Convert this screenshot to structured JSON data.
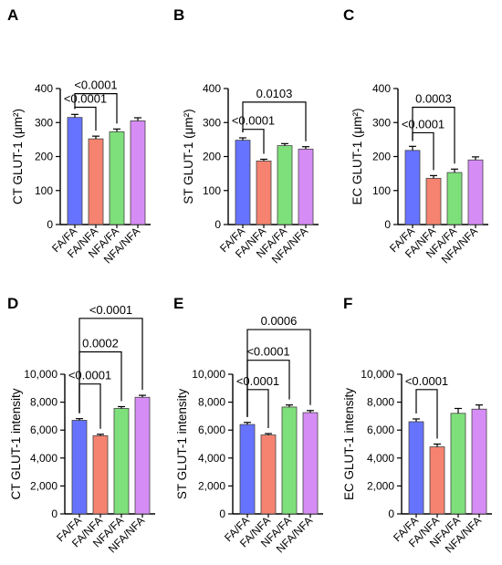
{
  "panels_meta": {
    "colors": [
      "#6673ff",
      "#f5836f",
      "#7ee07a",
      "#d68cf5"
    ],
    "error_color": "#000000"
  },
  "chart_data": [
    {
      "type": "bar",
      "panel_label": "A",
      "title": "",
      "ylabel": "CT GLUT-1 (μm²)",
      "ylim": [
        0,
        400
      ],
      "yticks": [
        "0",
        "100",
        "200",
        "300",
        "400"
      ],
      "yticks_values": [
        0,
        100,
        200,
        300,
        400
      ],
      "categories": [
        "FA/FA",
        "FA/NFA",
        "NFA/FA",
        "NFA/NFA"
      ],
      "values": [
        315,
        252,
        273,
        305
      ],
      "errors": [
        9,
        8,
        8,
        9
      ],
      "grid": false,
      "comparisons": [
        {
          "from": 0,
          "to": 1,
          "label": "<0.0001",
          "y": 345
        },
        {
          "from": 0,
          "to": 2,
          "label": "<0.0001",
          "y": 385
        }
      ]
    },
    {
      "type": "bar",
      "panel_label": "B",
      "title": "",
      "ylabel": "ST GLUT-1 (μm²)",
      "ylim": [
        0,
        400
      ],
      "yticks": [
        "0",
        "100",
        "200",
        "300",
        "400"
      ],
      "yticks_values": [
        0,
        100,
        200,
        300,
        400
      ],
      "categories": [
        "FA/FA",
        "FA/NFA",
        "NFA/FA",
        "NFA/NFA"
      ],
      "values": [
        248,
        187,
        232,
        222
      ],
      "errors": [
        7,
        5,
        6,
        7
      ],
      "grid": false,
      "comparisons": [
        {
          "from": 0,
          "to": 1,
          "label": "<0.0001",
          "y": 280
        },
        {
          "from": 0,
          "to": 3,
          "label": "0.0103",
          "y": 360
        }
      ]
    },
    {
      "type": "bar",
      "panel_label": "C",
      "title": "",
      "ylabel": "EC GLUT-1 (μm²)",
      "ylim": [
        0,
        400
      ],
      "yticks": [
        "0",
        "100",
        "200",
        "300",
        "400"
      ],
      "yticks_values": [
        0,
        100,
        200,
        300,
        400
      ],
      "categories": [
        "FA/FA",
        "FA/NFA",
        "NFA/FA",
        "NFA/NFA"
      ],
      "values": [
        218,
        136,
        153,
        190
      ],
      "errors": [
        12,
        8,
        10,
        9
      ],
      "grid": false,
      "comparisons": [
        {
          "from": 0,
          "to": 1,
          "label": "<0.0001",
          "y": 270
        },
        {
          "from": 0,
          "to": 2,
          "label": "0.0003",
          "y": 345
        }
      ]
    },
    {
      "type": "bar",
      "panel_label": "D",
      "title": "",
      "ylabel": "CT GLUT-1 intensity",
      "ylim": [
        0,
        10000
      ],
      "yticks": [
        "0",
        "2,000",
        "4,000",
        "6,000",
        "8,000",
        "10,000"
      ],
      "yticks_values": [
        0,
        2000,
        4000,
        6000,
        8000,
        10000
      ],
      "categories": [
        "FA/FA",
        "FA/NFA",
        "NFA/FA",
        "NFA/NFA"
      ],
      "values": [
        6700,
        5600,
        7550,
        8350
      ],
      "errors": [
        120,
        100,
        130,
        140
      ],
      "grid": false,
      "comparisons": [
        {
          "from": 0,
          "to": 1,
          "label": "<0.0001",
          "y": 9300
        },
        {
          "from": 0,
          "to": 2,
          "label": "0.0002",
          "y": 11600
        },
        {
          "from": 0,
          "to": 3,
          "label": "<0.0001",
          "y": 14000
        }
      ]
    },
    {
      "type": "bar",
      "panel_label": "E",
      "title": "",
      "ylabel": "ST GLUT-1 intensity",
      "ylim": [
        0,
        10000
      ],
      "yticks": [
        "0",
        "2,000",
        "4,000",
        "6,000",
        "8,000",
        "10,000"
      ],
      "yticks_values": [
        0,
        2000,
        4000,
        6000,
        8000,
        10000
      ],
      "categories": [
        "FA/FA",
        "FA/NFA",
        "NFA/FA",
        "NFA/NFA"
      ],
      "values": [
        6400,
        5650,
        7650,
        7250
      ],
      "errors": [
        150,
        100,
        150,
        150
      ],
      "grid": false,
      "comparisons": [
        {
          "from": 0,
          "to": 1,
          "label": "<0.0001",
          "y": 8900
        },
        {
          "from": 0,
          "to": 2,
          "label": "<0.0001",
          "y": 11000
        },
        {
          "from": 0,
          "to": 3,
          "label": "0.0006",
          "y": 13200
        }
      ]
    },
    {
      "type": "bar",
      "panel_label": "F",
      "title": "",
      "ylabel": "EC GLUT-1 intensity",
      "ylim": [
        0,
        10000
      ],
      "yticks": [
        "0",
        "2,000",
        "4,000",
        "6,000",
        "8,000",
        "10,000"
      ],
      "yticks_values": [
        0,
        2000,
        4000,
        6000,
        8000,
        10000
      ],
      "categories": [
        "FA/FA",
        "FA/NFA",
        "NFA/FA",
        "NFA/NFA"
      ],
      "values": [
        6600,
        4800,
        7200,
        7500
      ],
      "errors": [
        200,
        200,
        350,
        300
      ],
      "grid": false,
      "comparisons": [
        {
          "from": 0,
          "to": 1,
          "label": "<0.0001",
          "y": 8900
        }
      ]
    }
  ]
}
